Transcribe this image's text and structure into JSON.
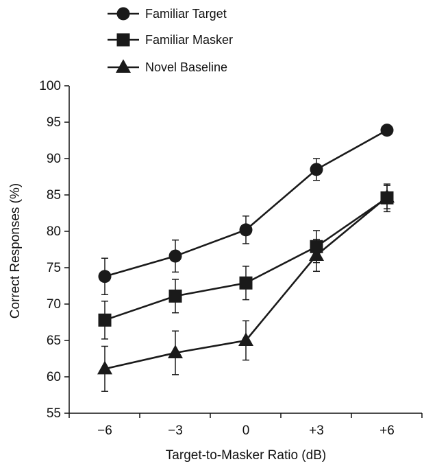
{
  "chart_data": {
    "type": "line",
    "categories": [
      "−6",
      "−3",
      "0",
      "+3",
      "+6"
    ],
    "xlabel": "Target-to-Masker Ratio (dB)",
    "ylabel": "Correct Responses (%)",
    "ylim": [
      55,
      100
    ],
    "yticks": [
      "55",
      "60",
      "65",
      "70",
      "75",
      "80",
      "85",
      "90",
      "95",
      "100"
    ],
    "grid": false,
    "legend_position": "top-left",
    "series": [
      {
        "name": "Familiar Target",
        "marker": "circle",
        "color": "#1a1a1a",
        "values": [
          73.8,
          76.6,
          80.2,
          88.5,
          93.9
        ],
        "error": [
          2.5,
          2.2,
          1.9,
          1.5,
          0
        ]
      },
      {
        "name": "Familiar Masker",
        "marker": "square",
        "color": "#1a1a1a",
        "values": [
          67.8,
          71.1,
          72.9,
          77.9,
          84.6
        ],
        "error": [
          2.6,
          2.3,
          2.3,
          2.2,
          1.9
        ]
      },
      {
        "name": "Novel Baseline",
        "marker": "triangle",
        "color": "#1a1a1a",
        "values": [
          61.1,
          63.3,
          65.0,
          76.7,
          84.7
        ],
        "error": [
          3.1,
          3.0,
          2.7,
          2.2,
          1.6
        ]
      }
    ]
  }
}
